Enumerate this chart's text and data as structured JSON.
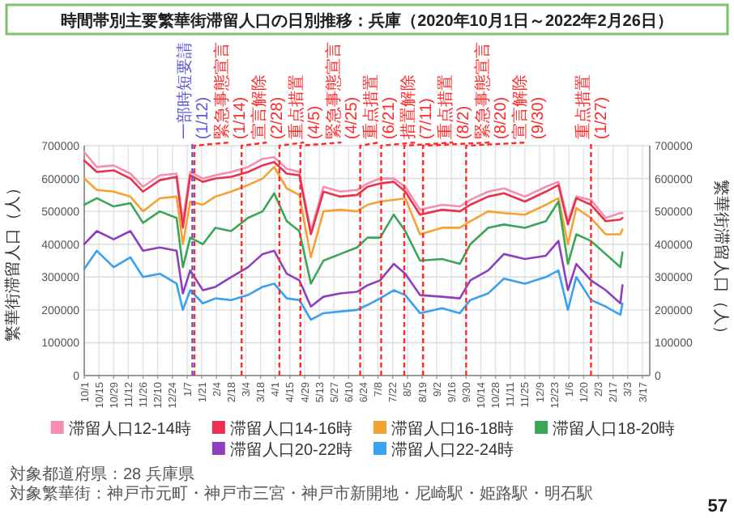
{
  "chart_data": {
    "type": "line",
    "title": "時間帯別主要繁華街滞留人口の日別推移：兵庫（2020年10月1日～2022年2月26日）",
    "ylabel": "繁華街滞留人口（人）",
    "y2label": "繁華街滞留人口（人）",
    "x": [
      "2020-10-01",
      "2020-10-13",
      "2020-10-29",
      "2020-11-14",
      "2020-11-26",
      "2020-12-12",
      "2020-12-28",
      "2021-01-03",
      "2021-01-10",
      "2021-01-22",
      "2021-02-03",
      "2021-02-18",
      "2021-03-06",
      "2021-03-20",
      "2021-03-31",
      "2021-04-12",
      "2021-04-24",
      "2021-05-05",
      "2021-05-17",
      "2021-06-02",
      "2021-06-18",
      "2021-06-28",
      "2021-07-10",
      "2021-07-23",
      "2021-08-03",
      "2021-08-17",
      "2021-09-07",
      "2021-09-24",
      "2021-10-04",
      "2021-10-21",
      "2021-11-05",
      "2021-11-25",
      "2021-12-15",
      "2021-12-27",
      "2022-01-05",
      "2022-01-13",
      "2022-01-27",
      "2022-02-10",
      "2022-02-24",
      "2022-02-26"
    ],
    "series": [
      {
        "name": "滞留人口12-14時",
        "color": "#f48fb1",
        "values": [
          680000,
          635000,
          640000,
          615000,
          575000,
          610000,
          615000,
          470000,
          620000,
          600000,
          610000,
          620000,
          635000,
          660000,
          665000,
          630000,
          620000,
          440000,
          575000,
          560000,
          565000,
          585000,
          600000,
          600000,
          575000,
          505000,
          520000,
          515000,
          535000,
          560000,
          570000,
          545000,
          575000,
          590000,
          470000,
          545000,
          535000,
          480000,
          495000,
          495000
        ]
      },
      {
        "name": "滞留人口14-16時",
        "color": "#e8334a",
        "values": [
          655000,
          620000,
          625000,
          600000,
          560000,
          595000,
          605000,
          450000,
          610000,
          590000,
          600000,
          605000,
          620000,
          640000,
          650000,
          615000,
          610000,
          430000,
          560000,
          545000,
          550000,
          575000,
          585000,
          590000,
          560000,
          490000,
          505000,
          500000,
          520000,
          545000,
          555000,
          530000,
          560000,
          580000,
          460000,
          540000,
          520000,
          470000,
          475000,
          480000
        ]
      },
      {
        "name": "滞留人口16-18時",
        "color": "#f7a133",
        "values": [
          600000,
          565000,
          560000,
          545000,
          500000,
          540000,
          545000,
          400000,
          530000,
          520000,
          545000,
          560000,
          580000,
          600000,
          635000,
          570000,
          550000,
          360000,
          500000,
          505000,
          500000,
          520000,
          530000,
          535000,
          540000,
          430000,
          450000,
          450000,
          470000,
          500000,
          495000,
          490000,
          520000,
          540000,
          400000,
          510000,
          480000,
          430000,
          430000,
          445000
        ]
      },
      {
        "name": "滞留人口18-20時",
        "color": "#3aa657",
        "values": [
          520000,
          540000,
          515000,
          525000,
          465000,
          500000,
          480000,
          330000,
          420000,
          400000,
          450000,
          440000,
          480000,
          500000,
          555000,
          470000,
          440000,
          280000,
          350000,
          370000,
          390000,
          420000,
          420000,
          490000,
          440000,
          350000,
          355000,
          340000,
          400000,
          450000,
          460000,
          450000,
          470000,
          530000,
          340000,
          430000,
          410000,
          370000,
          330000,
          375000
        ]
      },
      {
        "name": "滞留人口20-22時",
        "color": "#8e3fbf",
        "values": [
          400000,
          440000,
          415000,
          440000,
          380000,
          390000,
          380000,
          250000,
          320000,
          260000,
          270000,
          300000,
          330000,
          370000,
          380000,
          310000,
          290000,
          210000,
          240000,
          250000,
          255000,
          275000,
          290000,
          340000,
          310000,
          245000,
          240000,
          235000,
          290000,
          320000,
          370000,
          355000,
          365000,
          410000,
          260000,
          340000,
          290000,
          260000,
          220000,
          275000
        ]
      },
      {
        "name": "滞留人口22-24時",
        "color": "#3aa0f0",
        "values": [
          325000,
          380000,
          330000,
          360000,
          300000,
          310000,
          280000,
          200000,
          260000,
          220000,
          235000,
          230000,
          245000,
          270000,
          280000,
          235000,
          230000,
          170000,
          190000,
          195000,
          200000,
          215000,
          235000,
          260000,
          245000,
          190000,
          205000,
          190000,
          230000,
          250000,
          295000,
          280000,
          300000,
          320000,
          200000,
          300000,
          230000,
          210000,
          185000,
          220000
        ]
      }
    ],
    "xlim": [
      "2020-10-01",
      "2022-03-24"
    ],
    "xticks": [
      {
        "value": "2020-10-01",
        "label": "10/1"
      },
      {
        "value": "2020-10-15",
        "label": "10/15"
      },
      {
        "value": "2020-10-29",
        "label": "10/29"
      },
      {
        "value": "2020-11-12",
        "label": "11/12"
      },
      {
        "value": "2020-11-26",
        "label": "11/26"
      },
      {
        "value": "2020-12-10",
        "label": "12/10"
      },
      {
        "value": "2020-12-24",
        "label": "12/24"
      },
      {
        "value": "2021-01-07",
        "label": "1/7"
      },
      {
        "value": "2021-01-21",
        "label": "1/21"
      },
      {
        "value": "2021-02-04",
        "label": "2/4"
      },
      {
        "value": "2021-02-18",
        "label": "2/18"
      },
      {
        "value": "2021-03-04",
        "label": "3/4"
      },
      {
        "value": "2021-03-18",
        "label": "3/18"
      },
      {
        "value": "2021-04-01",
        "label": "4/1"
      },
      {
        "value": "2021-04-15",
        "label": "4/15"
      },
      {
        "value": "2021-04-29",
        "label": "4/29"
      },
      {
        "value": "2021-05-13",
        "label": "5/13"
      },
      {
        "value": "2021-05-27",
        "label": "5/27"
      },
      {
        "value": "2021-06-10",
        "label": "6/10"
      },
      {
        "value": "2021-06-24",
        "label": "6/24"
      },
      {
        "value": "2021-07-08",
        "label": "7/8"
      },
      {
        "value": "2021-07-22",
        "label": "7/22"
      },
      {
        "value": "2021-08-05",
        "label": "8/5"
      },
      {
        "value": "2021-08-19",
        "label": "8/19"
      },
      {
        "value": "2021-09-02",
        "label": "9/2"
      },
      {
        "value": "2021-09-16",
        "label": "9/16"
      },
      {
        "value": "2021-09-30",
        "label": "9/30"
      },
      {
        "value": "2021-10-14",
        "label": "10/14"
      },
      {
        "value": "2021-10-28",
        "label": "10/28"
      },
      {
        "value": "2021-11-11",
        "label": "11/11"
      },
      {
        "value": "2021-11-25",
        "label": "11/25"
      },
      {
        "value": "2021-12-09",
        "label": "12/9"
      },
      {
        "value": "2021-12-23",
        "label": "12/23"
      },
      {
        "value": "2022-01-06",
        "label": "1/6"
      },
      {
        "value": "2022-01-20",
        "label": "1/20"
      },
      {
        "value": "2022-02-03",
        "label": "2/3"
      },
      {
        "value": "2022-02-17",
        "label": "2/17"
      },
      {
        "value": "2022-03-03",
        "label": "3/3"
      },
      {
        "value": "2022-03-17",
        "label": "3/17"
      }
    ],
    "ylim": [
      0,
      700000
    ],
    "yticks": [
      0,
      100000,
      200000,
      300000,
      400000,
      500000,
      600000,
      700000
    ],
    "y2lim": [
      0,
      700000
    ],
    "y2ticks": [
      0,
      100000,
      200000,
      300000,
      400000,
      500000,
      600000,
      700000
    ],
    "grid": true,
    "legend": "bottom",
    "ref_lines": [
      {
        "axis": "x",
        "value": "2021-01-12",
        "label": "一部時短要請(1/12)",
        "color": "#5b5bd6",
        "line_style": "dashed"
      },
      {
        "axis": "x",
        "value": "2021-01-14",
        "label": "緊急事態宣言(1/14)",
        "color": "#ff2a2a",
        "line_style": "dashed"
      },
      {
        "axis": "x",
        "value": "2021-02-28",
        "label": "宣言解除(2/28)",
        "color": "#ff2a2a",
        "line_style": "dashed"
      },
      {
        "axis": "x",
        "value": "2021-04-05",
        "label": "重点措置(4/5)",
        "color": "#ff2a2a",
        "line_style": "dashed"
      },
      {
        "axis": "x",
        "value": "2021-04-25",
        "label": "緊急事態宣言(4/25)",
        "color": "#ff2a2a",
        "line_style": "dashed"
      },
      {
        "axis": "x",
        "value": "2021-06-21",
        "label": "重点措置(6/21)",
        "color": "#ff2a2a",
        "line_style": "dashed"
      },
      {
        "axis": "x",
        "value": "2021-07-11",
        "label": "措置解除(7/11)",
        "color": "#ff2a2a",
        "line_style": "dashed"
      },
      {
        "axis": "x",
        "value": "2021-08-02",
        "label": "重点措置(8/2)",
        "color": "#ff2a2a",
        "line_style": "dashed"
      },
      {
        "axis": "x",
        "value": "2021-08-20",
        "label": "緊急事態宣言(8/20)",
        "color": "#ff2a2a",
        "line_style": "dashed"
      },
      {
        "axis": "x",
        "value": "2021-09-30",
        "label": "宣言解除(9/30)",
        "color": "#ff2a2a",
        "line_style": "dashed"
      },
      {
        "axis": "x",
        "value": "2022-01-27",
        "label": "重点措置(1/27)",
        "color": "#ff2a2a",
        "line_style": "dashed"
      }
    ],
    "annotations": [
      "対象都道府県：28 兵庫県",
      "対象繁華街：神戸市元町・神戸市三宮・神戸市新開地・尼崎駅・姫路駅・明石駅",
      "57"
    ]
  }
}
